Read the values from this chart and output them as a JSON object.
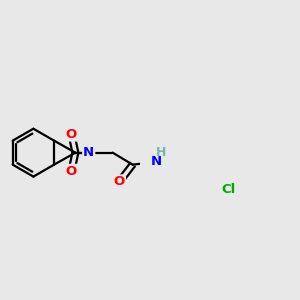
{
  "bg_color": "#e8e8e8",
  "atom_colors": {
    "C": "#000000",
    "N": "#0000ff",
    "O": "#ff0000",
    "Cl": "#00aa00",
    "H": "#7ab3b3"
  },
  "bond_color": "#000000",
  "bond_width": 1.6,
  "figsize": [
    3.0,
    3.0
  ],
  "dpi": 100
}
